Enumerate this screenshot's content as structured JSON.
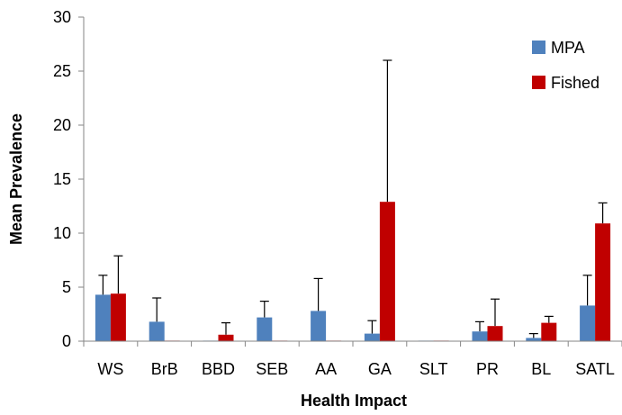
{
  "chart_data": {
    "type": "bar",
    "title": "",
    "xlabel": "Health Impact",
    "ylabel": "Mean Prevalence",
    "ylim": [
      0,
      30
    ],
    "yticks": [
      0,
      5,
      10,
      15,
      20,
      25,
      30
    ],
    "grid": false,
    "legend_position": "top-right",
    "categories": [
      "WS",
      "BrB",
      "BBD",
      "SEB",
      "AA",
      "GA",
      "SLT",
      "PR",
      "BL",
      "SATL"
    ],
    "series": [
      {
        "name": "MPA",
        "color": "#4F81BD",
        "values": [
          4.3,
          1.8,
          0.05,
          2.2,
          2.8,
          0.7,
          0.05,
          0.9,
          0.3,
          3.3
        ],
        "error_plus": [
          1.8,
          2.2,
          0.0,
          1.5,
          3.0,
          1.2,
          0.0,
          0.9,
          0.4,
          2.8
        ]
      },
      {
        "name": "Fished",
        "color": "#C00000",
        "values": [
          4.4,
          0.05,
          0.6,
          0.05,
          0.05,
          12.9,
          0.05,
          1.4,
          1.7,
          10.9
        ],
        "error_plus": [
          3.5,
          0.0,
          1.1,
          0.0,
          0.0,
          13.1,
          0.0,
          2.5,
          0.6,
          1.9
        ]
      }
    ]
  }
}
